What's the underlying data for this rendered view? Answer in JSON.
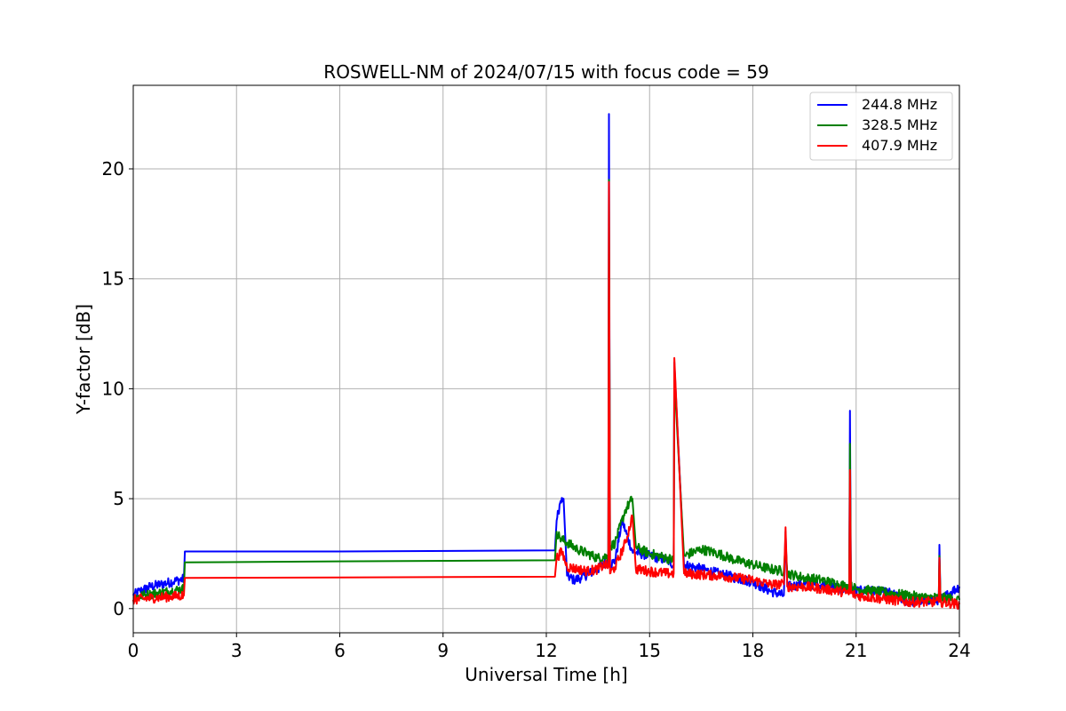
{
  "chart_data": {
    "type": "line",
    "title": "ROSWELL-NM of 2024/07/15 with focus code = 59",
    "xlabel": "Universal Time [h]",
    "ylabel": "Y-factor [dB]",
    "xlim": [
      0,
      24
    ],
    "ylim": [
      -1.1,
      23.8
    ],
    "xticks": [
      0,
      3,
      6,
      9,
      12,
      15,
      18,
      21,
      24
    ],
    "yticks": [
      0,
      5,
      10,
      15,
      20
    ],
    "grid": true,
    "legend_position": "top-right",
    "series": [
      {
        "name": "244.8 MHz",
        "color": "#0000ff",
        "x": [
          0,
          0.2,
          0.5,
          0.8,
          1.2,
          1.47,
          1.5,
          6,
          12.25,
          12.3,
          12.4,
          12.5,
          12.6,
          12.8,
          13.0,
          13.5,
          13.8,
          13.82,
          13.85,
          14.0,
          14.2,
          14.5,
          15.0,
          15.5,
          15.7,
          15.72,
          16.0,
          17.0,
          18.0,
          18.5,
          18.9,
          18.95,
          19.0,
          19.5,
          20.0,
          20.5,
          20.8,
          20.82,
          20.85,
          21.0,
          21.5,
          22.0,
          22.5,
          23.0,
          23.4,
          23.42,
          23.45,
          23.8,
          24.0
        ],
        "y": [
          0.6,
          0.8,
          1.0,
          1.1,
          1.25,
          1.35,
          2.6,
          2.6,
          2.65,
          4.0,
          4.8,
          5.0,
          1.5,
          1.3,
          1.4,
          1.8,
          2.2,
          22.5,
          2.0,
          2.2,
          4.0,
          2.6,
          2.4,
          2.2,
          2.0,
          11.2,
          2.0,
          1.6,
          1.2,
          0.8,
          0.6,
          3.5,
          1.0,
          1.1,
          1.1,
          0.9,
          0.9,
          9.0,
          0.9,
          0.8,
          0.8,
          0.7,
          0.3,
          0.4,
          0.4,
          2.9,
          0.4,
          0.8,
          1.0
        ]
      },
      {
        "name": "328.5 MHz",
        "color": "#008000",
        "x": [
          0,
          0.3,
          0.7,
          1.1,
          1.47,
          1.5,
          6,
          12.25,
          12.3,
          12.4,
          12.6,
          12.9,
          13.2,
          13.5,
          13.8,
          13.82,
          13.85,
          14.0,
          14.3,
          14.5,
          14.6,
          15.0,
          15.5,
          15.7,
          15.72,
          16.0,
          16.5,
          17.0,
          17.5,
          18.0,
          18.5,
          18.9,
          18.95,
          19.0,
          19.5,
          20.0,
          20.5,
          20.8,
          20.82,
          20.85,
          21.0,
          21.5,
          22.0,
          22.5,
          23.0,
          23.4,
          23.42,
          23.45,
          24.0
        ],
        "y": [
          0.5,
          0.6,
          0.7,
          0.8,
          0.9,
          2.1,
          2.15,
          2.2,
          3.5,
          3.2,
          3.0,
          2.7,
          2.5,
          2.3,
          2.4,
          19.5,
          2.8,
          3.0,
          4.5,
          5.0,
          2.8,
          2.5,
          2.3,
          2.2,
          10.5,
          2.4,
          2.7,
          2.5,
          2.2,
          2.0,
          1.8,
          1.7,
          3.0,
          1.6,
          1.4,
          1.3,
          1.1,
          1.0,
          7.5,
          1.0,
          0.9,
          0.8,
          0.7,
          0.6,
          0.5,
          0.5,
          2.4,
          0.5,
          0.4
        ]
      },
      {
        "name": "407.9 MHz",
        "color": "#ff0000",
        "x": [
          0,
          0.3,
          0.7,
          1.1,
          1.47,
          1.5,
          6,
          12.25,
          12.3,
          12.45,
          12.6,
          12.9,
          13.2,
          13.5,
          13.7,
          13.8,
          13.82,
          13.85,
          14.0,
          14.3,
          14.5,
          14.6,
          15.0,
          15.5,
          15.7,
          15.72,
          16.0,
          17.0,
          18.0,
          18.5,
          18.9,
          18.95,
          19.0,
          19.5,
          20.0,
          20.5,
          20.8,
          20.82,
          20.85,
          21.0,
          21.5,
          22.0,
          22.5,
          23.0,
          23.4,
          23.42,
          23.45,
          24.0
        ],
        "y": [
          0.4,
          0.45,
          0.5,
          0.55,
          0.6,
          1.4,
          1.42,
          1.45,
          2.3,
          2.6,
          1.9,
          1.8,
          1.7,
          1.8,
          2.0,
          1.9,
          19.4,
          1.6,
          1.9,
          3.0,
          4.2,
          1.8,
          1.7,
          1.6,
          1.6,
          11.4,
          1.6,
          1.5,
          1.3,
          1.1,
          1.1,
          3.7,
          1.0,
          1.0,
          0.9,
          0.8,
          0.7,
          6.3,
          0.7,
          0.6,
          0.5,
          0.4,
          0.3,
          0.3,
          0.3,
          2.3,
          0.3,
          0.2
        ]
      }
    ]
  }
}
